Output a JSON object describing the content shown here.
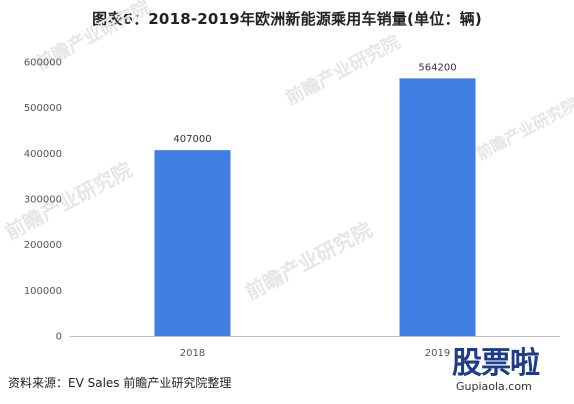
{
  "title": "图表6：2018-2019年欧洲新能源乘用车销量(单位：辆)",
  "source": "资料来源：EV Sales 前瞻产业研究院整理",
  "watermarks": {
    "brand": "前瞻产业研究院",
    "stamp_word": "股票啦",
    "stamp_site": "Gupiaola.com"
  },
  "colors": {
    "bar": "#3f7fe3",
    "axis": "#bfbfbf",
    "text": "#555555"
  },
  "chart_data": {
    "type": "bar",
    "title": "图表6：2018-2019年欧洲新能源乘用车销量(单位：辆)",
    "categories": [
      "2018",
      "2019"
    ],
    "values": [
      407000,
      564200
    ],
    "data_labels": [
      "407000",
      "564200"
    ],
    "yticks": [
      0,
      100000,
      200000,
      300000,
      400000,
      500000,
      600000
    ],
    "ylim": [
      0,
      600000
    ],
    "xlabel": "",
    "ylabel": "",
    "grid": false,
    "legend": "none"
  }
}
